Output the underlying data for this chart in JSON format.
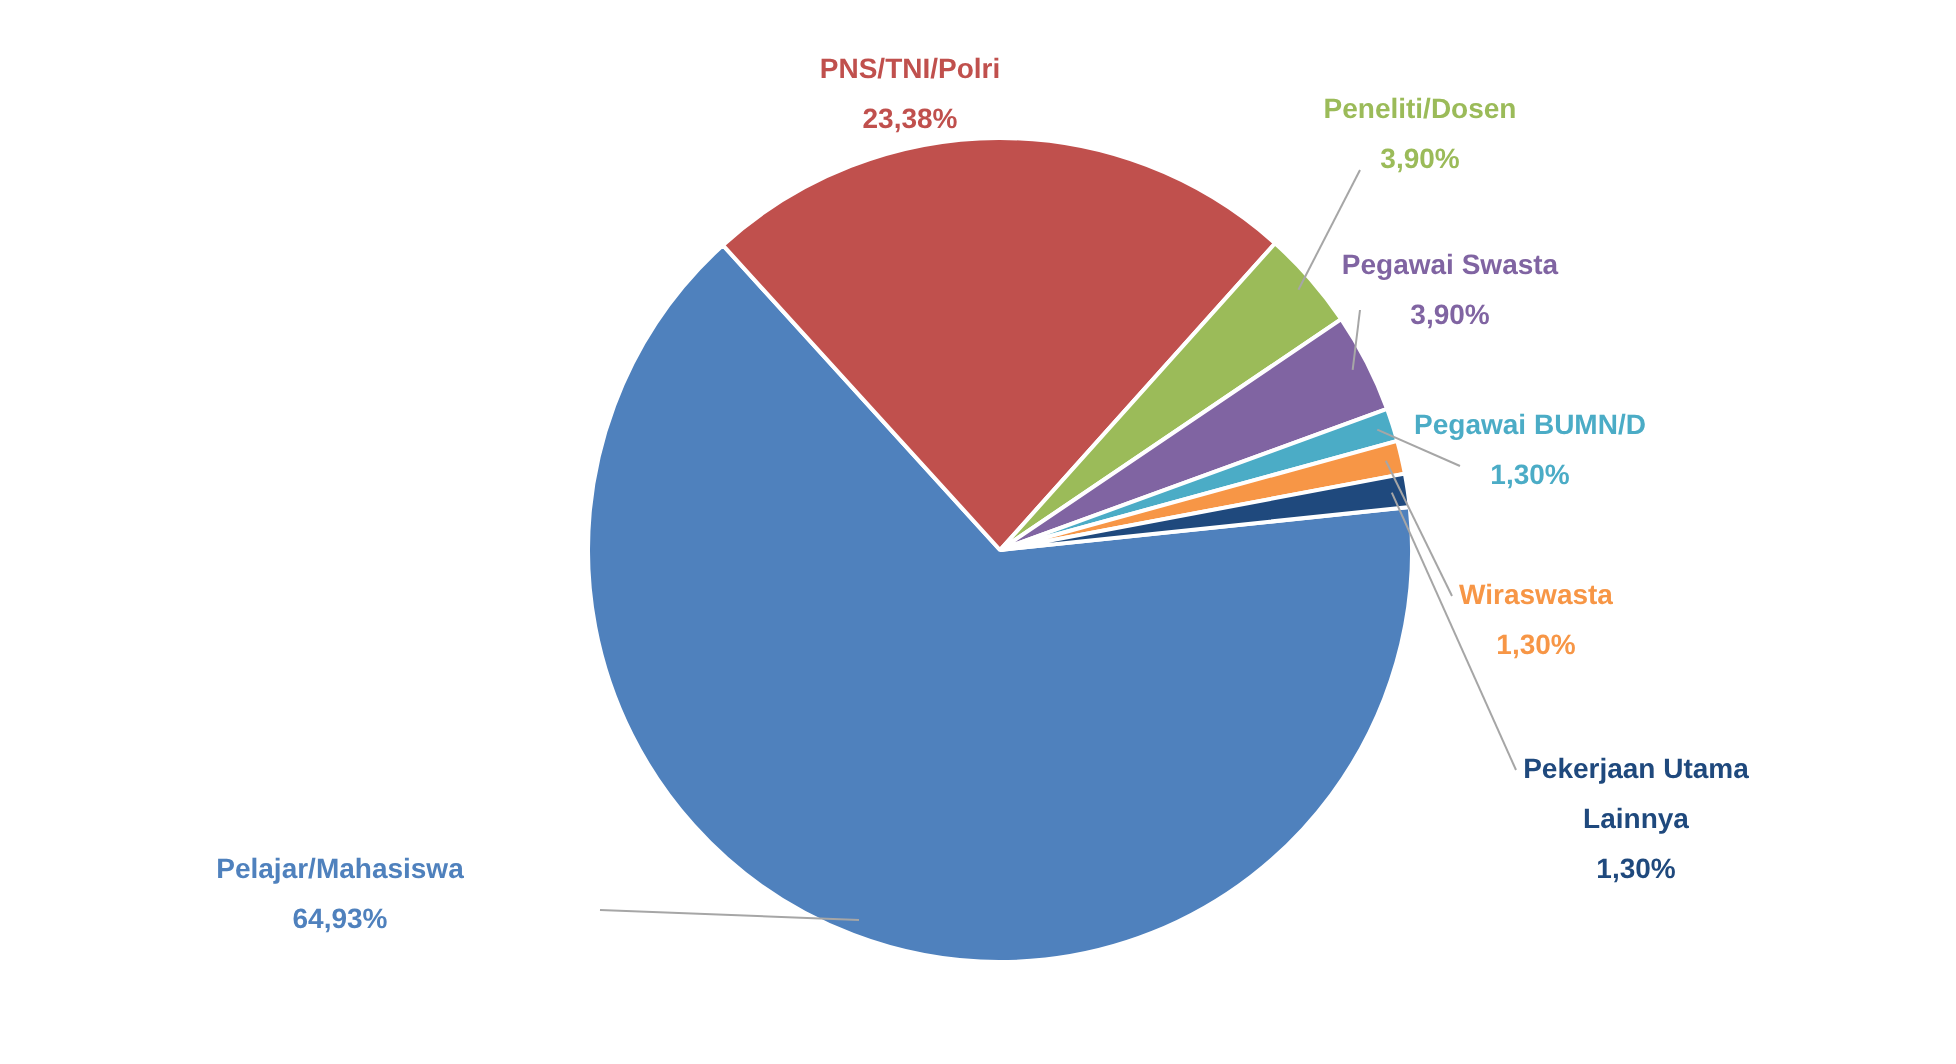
{
  "chart_data": {
    "type": "pie",
    "categories": [
      "Pelajar/Mahasiswa",
      "PNS/TNI/Polri",
      "Peneliti/Dosen",
      "Pegawai Swasta",
      "Pegawai BUMN/D",
      "Wiraswasta",
      "Pekerjaan Utama Lainnya"
    ],
    "values": [
      64.93,
      23.38,
      3.9,
      3.9,
      1.3,
      1.3,
      1.3
    ],
    "colors": [
      "#4f81bd",
      "#c0504d",
      "#9bbb59",
      "#8064a2",
      "#4bacc6",
      "#f79646",
      "#1f497d"
    ],
    "value_labels": [
      "64,93%",
      "23,38%",
      "3,90%",
      "3,90%",
      "1,30%",
      "1,30%",
      "1,30%"
    ],
    "legend": false
  }
}
